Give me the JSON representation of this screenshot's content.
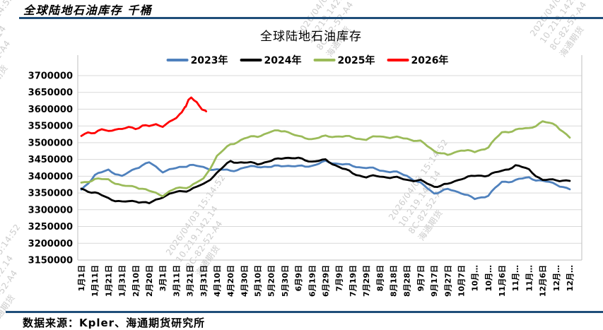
{
  "header": {
    "title": "全球陆地石油库存  千桶"
  },
  "footer": {
    "source": "数据来源：Kpler、海通期货研究所"
  },
  "watermark": {
    "lines": [
      "2026/04/03 15:14:52",
      "10.219.142.14",
      "8C-82-52-A4",
      "海通期货"
    ]
  },
  "chart_data": {
    "type": "line",
    "title": "全球陆地石油库存",
    "unit": "千桶",
    "ylim": [
      3150000,
      3700000
    ],
    "ytick_step": 50000,
    "grid": true,
    "legend_position": "top",
    "xtick_interval_days": 10,
    "xtick_labels": [
      "1月1日",
      "1月11日",
      "1月21日",
      "1月31日",
      "2月10日",
      "2月20日",
      "3月1日",
      "3月11日",
      "3月21日",
      "3月31日",
      "4月10日",
      "4月20日",
      "4月30日",
      "5月10日",
      "5月20日",
      "5月30日",
      "6月9日",
      "6月19日",
      "6月29日",
      "7月9日",
      "7月19日",
      "7月29日",
      "8月8日",
      "8月18日",
      "8月28日",
      "9月7日",
      "9月17日",
      "9月27日",
      "10月7日",
      "10月…",
      "10月…",
      "11月6日",
      "11月…",
      "11月…",
      "12月6日",
      "12月…",
      "12月…"
    ],
    "series": [
      {
        "name": "2023年",
        "color": "#4F81BD",
        "day_step": 10,
        "values": [
          3360000,
          3402000,
          3420000,
          3398000,
          3425000,
          3440000,
          3415000,
          3423000,
          3435000,
          3425000,
          3420000,
          3416000,
          3425000,
          3430000,
          3427000,
          3433000,
          3428000,
          3432000,
          3443000,
          3438000,
          3430000,
          3426000,
          3418000,
          3413000,
          3402000,
          3378000,
          3350000,
          3360000,
          3352000,
          3331000,
          3344000,
          3382000,
          3388000,
          3396000,
          3385000,
          3377000,
          3360000
        ]
      },
      {
        "name": "2024年",
        "color": "#000000",
        "day_step": 10,
        "values": [
          3363000,
          3350000,
          3335000,
          3322000,
          3327000,
          3318000,
          3340000,
          3352000,
          3360000,
          3375000,
          3410000,
          3445000,
          3440000,
          3438000,
          3445000,
          3457000,
          3452000,
          3445000,
          3447000,
          3429000,
          3408000,
          3398000,
          3400000,
          3396000,
          3390000,
          3386000,
          3370000,
          3375000,
          3394000,
          3400000,
          3404000,
          3415000,
          3432000,
          3420000,
          3387000,
          3390000,
          3385000
        ]
      },
      {
        "name": "2025年",
        "color": "#9BBB59",
        "day_step": 10,
        "values": [
          3381000,
          3390000,
          3391000,
          3370000,
          3370000,
          3355000,
          3344000,
          3363000,
          3370000,
          3391000,
          3460000,
          3495000,
          3512000,
          3520000,
          3532000,
          3537000,
          3517000,
          3512000,
          3518000,
          3520000,
          3515000,
          3510000,
          3520000,
          3515000,
          3513000,
          3503000,
          3477000,
          3461000,
          3480000,
          3471000,
          3488000,
          3530000,
          3538000,
          3543000,
          3562000,
          3553000,
          3514000
        ]
      },
      {
        "name": "2026年",
        "color": "#FF0000",
        "days": [
          0,
          5,
          10,
          15,
          20,
          25,
          30,
          35,
          40,
          45,
          50,
          55,
          60,
          65,
          70,
          74,
          77,
          79,
          81,
          83,
          85,
          87,
          89,
          92
        ],
        "values": [
          3520000,
          3534000,
          3527000,
          3539000,
          3535000,
          3542000,
          3538000,
          3546000,
          3543000,
          3551000,
          3548000,
          3554000,
          3551000,
          3561000,
          3572000,
          3590000,
          3610000,
          3626000,
          3634000,
          3628000,
          3620000,
          3610000,
          3601000,
          3595000
        ]
      }
    ]
  }
}
